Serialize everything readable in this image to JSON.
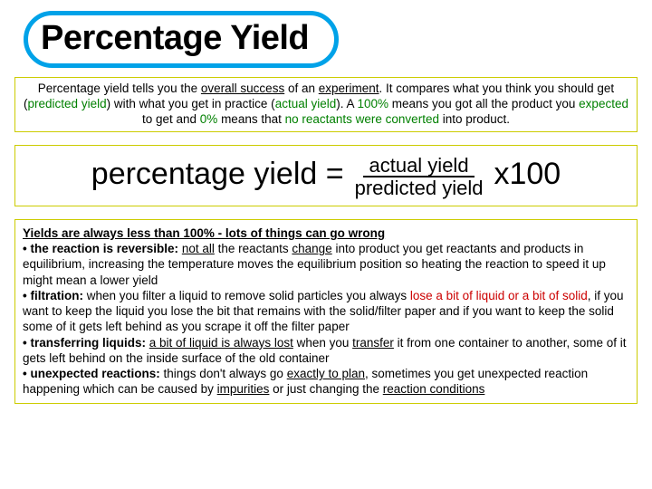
{
  "colors": {
    "title_border": "#00a2e8",
    "box_border": "#cccc00",
    "green": "#008000",
    "red": "#cc0000",
    "black": "#000000",
    "background": "#ffffff"
  },
  "title": "Percentage Yield",
  "intro": {
    "p1a": "Percentage yield tells you the ",
    "p1b_u": "overall success",
    "p1c": " of an ",
    "p1d_u": "experiment",
    "p1e": ". It compares what you think you should get (",
    "p1f_g": "predicted yield",
    "p1g": ") with what you get in practice (",
    "p1h_g": "actual yield",
    "p1i": "). A ",
    "p1j_g": "100%",
    "p1k": " means you got all the product you ",
    "p1l_g": "expected",
    "p1m": " to get and ",
    "p1n_g": "0%",
    "p1o": " means that ",
    "p1p_g": "no reactants were converted",
    "p1q": " into product."
  },
  "formula": {
    "lhs": "percentage yield = ",
    "top": "actual yield",
    "bottom": "predicted yield",
    "rhs": " x100"
  },
  "notes": {
    "heading": "Yields are always less than 100% - lots of things can go wrong",
    "b1_label": "• the reaction is reversible:",
    "b1a": " ",
    "b1b_u": "not all",
    "b1c": " the reactants ",
    "b1d_u": "change",
    "b1e": " into product you get reactants and products in equilibrium, increasing the temperature moves the equilibrium position so heating the reaction to speed it up might mean a lower yield",
    "b2_label": "• filtration:",
    "b2a": " when you filter a liquid to remove solid particles you always ",
    "b2b_r": "lose a bit of liquid or a bit of solid",
    "b2c": ", if you want to keep the liquid you lose the bit that remains with the solid/filter paper and if you want to keep the solid some of it gets left behind as you scrape it off the filter paper",
    "b3_label": "• transferring liquids:",
    "b3a": " ",
    "b3b_u": "a bit of liquid is always lost",
    "b3c": " when you ",
    "b3d_u": "transfer",
    "b3e": " it from one container to another, some of it gets left behind on the inside surface of the old container",
    "b4_label": "• unexpected reactions:",
    "b4a": " things don't always go ",
    "b4b_u": "exactly to plan",
    "b4c": ", sometimes you get unexpected reaction happening which can be caused by ",
    "b4d_u": "impurities",
    "b4e": " or just changing the ",
    "b4f_u": "reaction conditions"
  }
}
